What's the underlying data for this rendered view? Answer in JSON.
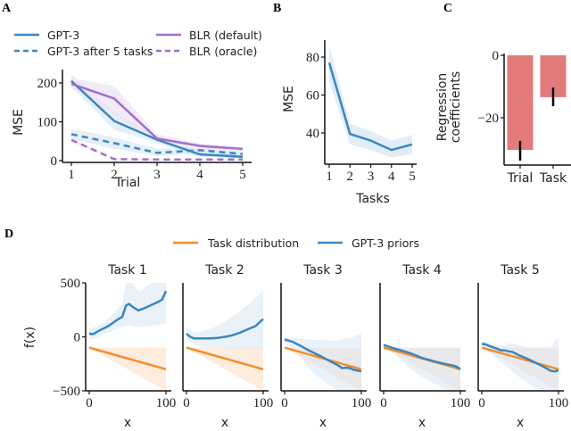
{
  "colors": {
    "gpt3": "#3a87c0",
    "blr": "#a36fc9",
    "task_dist": "#f28e2b",
    "bar": "#e37b7b",
    "gpt3_band": "#dbe8f5",
    "blr_band": "#ece3f5",
    "task_band": "#fde6d2"
  },
  "panel_labels": [
    "A",
    "B",
    "C",
    "D"
  ],
  "chart_data": [
    {
      "id": "A",
      "type": "line",
      "title": "",
      "xlabel": "Trial",
      "ylabel": "MSE",
      "x": [
        1,
        2,
        3,
        4,
        5
      ],
      "xticks": [
        "1",
        "2",
        "3",
        "4",
        "5"
      ],
      "yticks": [
        "0",
        "100",
        "200"
      ],
      "ytick_values": [
        0,
        100,
        200
      ],
      "ylim": [
        -5,
        235
      ],
      "legend_position": "top",
      "series": [
        {
          "name": "GPT-3",
          "style": "solid",
          "color": "gpt3",
          "values": [
            205,
            102,
            54,
            16,
            10
          ],
          "band_low": [
            190,
            80,
            45,
            10,
            5
          ],
          "band_high": [
            222,
            125,
            65,
            25,
            18
          ]
        },
        {
          "name": "GPT-3 after 5 tasks",
          "style": "dashed",
          "color": "gpt3",
          "values": [
            68,
            45,
            20,
            27,
            17
          ],
          "band_low": [
            55,
            30,
            12,
            18,
            10
          ],
          "band_high": [
            82,
            60,
            30,
            36,
            25
          ]
        },
        {
          "name": "BLR (default)",
          "style": "solid",
          "color": "blr",
          "values": [
            198,
            160,
            57,
            38,
            30
          ],
          "band_low": [
            185,
            120,
            48,
            33,
            25
          ],
          "band_high": [
            212,
            192,
            68,
            44,
            35
          ]
        },
        {
          "name": "BLR (oracle)",
          "style": "dashed",
          "color": "blr",
          "values": [
            53,
            4,
            3,
            3,
            3
          ],
          "band_low": [
            48,
            3,
            2,
            2,
            2
          ],
          "band_high": [
            58,
            6,
            4,
            4,
            4
          ]
        }
      ]
    },
    {
      "id": "B",
      "type": "line",
      "xlabel": "Tasks",
      "ylabel": "MSE",
      "x": [
        1,
        2,
        3,
        4,
        5
      ],
      "xticks": [
        "1",
        "2",
        "3",
        "4",
        "5"
      ],
      "yticks": [
        "40",
        "60",
        "80"
      ],
      "ytick_values": [
        40,
        60,
        80
      ],
      "ylim": [
        24,
        89
      ],
      "series": [
        {
          "name": "GPT-3",
          "values": [
            77,
            39.5,
            36,
            31,
            34
          ],
          "band_low": [
            67,
            34,
            31,
            27,
            29
          ],
          "band_high": [
            86,
            45,
            41,
            36,
            39
          ]
        }
      ]
    },
    {
      "id": "C",
      "type": "bar",
      "ylabel": "Regression\ncoefficients",
      "ylabel_lines": [
        "Regression",
        "coefficients"
      ],
      "categories": [
        "Trial",
        "Task"
      ],
      "values": [
        -30.3,
        -13.4
      ],
      "err_low": [
        -33.7,
        -16.3
      ],
      "err_high": [
        -27.4,
        -10.3
      ],
      "yticks": [
        "0",
        "−20"
      ],
      "ytick_values": [
        0,
        -20
      ],
      "ylim": [
        -35.5,
        0
      ]
    },
    {
      "id": "D",
      "type": "line",
      "ylabel": "f(x)",
      "xlabel": "x",
      "xticks": [
        "0",
        "100"
      ],
      "xtick_values": [
        0,
        100
      ],
      "yticks": [
        "500",
        "0",
        "−500"
      ],
      "ytick_values": [
        500,
        0,
        -500
      ],
      "ylim": [
        -500,
        500
      ],
      "legend": [
        "Task distribution",
        "GPT-3 priors"
      ],
      "legend_position": "top",
      "task_distribution": {
        "x": [
          0,
          100
        ],
        "values": [
          -100,
          -300
        ],
        "band_low": [
          -100,
          -500
        ],
        "band_high": [
          -100,
          -100
        ]
      },
      "subplots": [
        {
          "title": "Task 1",
          "x": [
            0,
            5,
            15,
            25,
            38,
            43,
            48,
            52,
            56,
            64,
            72,
            81,
            90,
            95,
            100
          ],
          "values": [
            30,
            25,
            65,
            100,
            165,
            185,
            290,
            305,
            280,
            245,
            265,
            295,
            325,
            345,
            425
          ],
          "band_low": [
            -20,
            -20,
            10,
            40,
            80,
            90,
            100,
            110,
            100,
            90,
            95,
            100,
            110,
            120,
            130
          ],
          "band_high": [
            80,
            80,
            120,
            170,
            260,
            300,
            500,
            500,
            500,
            420,
            450,
            500,
            500,
            500,
            500
          ]
        },
        {
          "title": "Task 2",
          "x": [
            0,
            5,
            10,
            20,
            30,
            40,
            50,
            60,
            70,
            80,
            90,
            100
          ],
          "values": [
            30,
            0,
            -15,
            -15,
            -15,
            -10,
            0,
            15,
            40,
            70,
            100,
            165
          ],
          "band_low": [
            -30,
            -50,
            -70,
            -90,
            -100,
            -100,
            -110,
            -110,
            -110,
            -110,
            -110,
            -110
          ],
          "band_high": [
            100,
            60,
            40,
            50,
            70,
            100,
            140,
            190,
            240,
            300,
            360,
            430
          ]
        },
        {
          "title": "Task 3",
          "x": [
            0,
            10,
            20,
            30,
            40,
            50,
            60,
            70,
            75,
            80,
            85,
            90,
            100
          ],
          "values": [
            -25,
            -45,
            -80,
            -120,
            -155,
            -190,
            -230,
            -265,
            -290,
            -285,
            -290,
            -305,
            -320
          ],
          "band_low": [
            -60,
            -100,
            -180,
            -270,
            -350,
            -400,
            -450,
            -500,
            -500,
            -500,
            -500,
            -500,
            -500
          ],
          "band_high": [
            0,
            -10,
            -15,
            -20,
            -30,
            -30,
            -35,
            -40,
            -25,
            -10,
            -10,
            0,
            40
          ]
        },
        {
          "title": "Task 4",
          "x": [
            0,
            10,
            20,
            30,
            40,
            50,
            60,
            70,
            80,
            90,
            95,
            100
          ],
          "values": [
            -75,
            -100,
            -120,
            -140,
            -165,
            -195,
            -215,
            -235,
            -250,
            -265,
            -275,
            -300
          ],
          "band_low": [
            -90,
            -140,
            -200,
            -260,
            -320,
            -370,
            -410,
            -450,
            -480,
            -500,
            -500,
            -500
          ],
          "band_high": [
            -60,
            -80,
            -95,
            -100,
            -100,
            -100,
            -100,
            -100,
            -100,
            -100,
            -100,
            -100
          ]
        },
        {
          "title": "Task 5",
          "x": [
            0,
            5,
            10,
            20,
            25,
            30,
            35,
            40,
            50,
            60,
            70,
            80,
            90,
            95,
            100
          ],
          "values": [
            -65,
            -70,
            -85,
            -110,
            -125,
            -125,
            -135,
            -140,
            -175,
            -205,
            -240,
            -275,
            -315,
            -320,
            -310
          ],
          "band_low": [
            -80,
            -100,
            -140,
            -200,
            -240,
            -260,
            -290,
            -320,
            -380,
            -430,
            -470,
            -500,
            -500,
            -500,
            -500
          ],
          "band_high": [
            -40,
            -45,
            -60,
            -75,
            -80,
            -75,
            -60,
            -60,
            -80,
            -100,
            -100,
            -100,
            -100,
            -40,
            -20
          ]
        }
      ]
    }
  ]
}
